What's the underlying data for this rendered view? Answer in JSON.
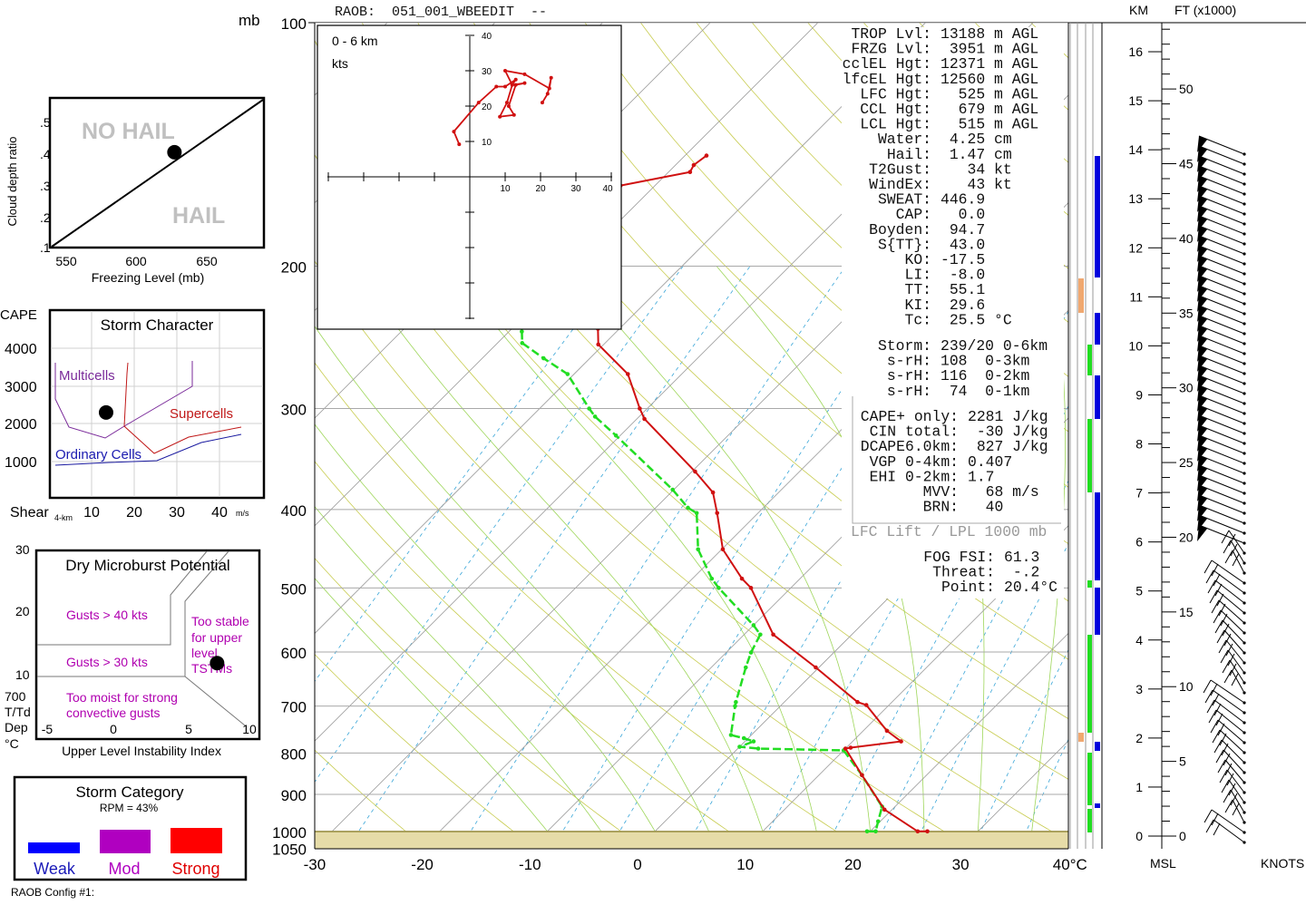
{
  "header": {
    "raob_title": "RAOB:  051_001_WBEEDIT  --",
    "mb_label": "mb",
    "km_label": "KM",
    "ft_label": "FT (x1000)",
    "msl_label": "MSL",
    "knots_label": "KNOTS",
    "config_label": "RAOB Config #1:"
  },
  "hail_chart": {
    "ylabel": "Cloud depth ratio",
    "xlabel": "Freezing Level (mb)",
    "yticks": [
      ".5",
      ".4",
      ".3",
      ".2",
      ".1"
    ],
    "xticks": [
      "550",
      "600",
      "650"
    ],
    "no_hail_label": "NO HAIL",
    "hail_label": "HAIL",
    "point": {
      "freezing_level_mb": 627,
      "ratio": 0.406
    }
  },
  "storm_character": {
    "title": "Storm Character",
    "ylabel": "CAPE",
    "xlabel": "Shear",
    "xlabel_sub": "4-km",
    "xunit": "m/s",
    "yticks": [
      "4000",
      "3000",
      "2000",
      "1000"
    ],
    "xticks": [
      "10",
      "20",
      "30",
      "40"
    ],
    "regions": {
      "multicells": "Multicells",
      "supercells": "Supercells",
      "ordinary": "Ordinary Cells"
    },
    "point": {
      "shear": 13.4,
      "cape": 2281
    }
  },
  "microburst": {
    "title": "Dry Microburst Potential",
    "xlabel": "Upper Level Instability Index",
    "ylabel_lines": [
      "700",
      "T/Td",
      "Dep",
      "°C"
    ],
    "yticks": [
      "30",
      "20",
      "10"
    ],
    "xticks": [
      "-5",
      "0",
      "5",
      "10"
    ],
    "gusts40": "Gusts > 40 kts",
    "gusts30": "Gusts > 30 kts",
    "too_stable": [
      "Too stable",
      "for upper",
      "level",
      "TSTMs"
    ],
    "too_moist": [
      "Too moist for strong",
      "convective gusts"
    ],
    "point": {
      "index": 7.6,
      "dep": 12.4
    }
  },
  "storm_category": {
    "title": "Storm Category",
    "rpm": "RPM = 43%",
    "weak": "Weak",
    "mod": "Mod",
    "strong": "Strong",
    "colors": {
      "weak": "#0000ff",
      "mod": "#b000c0",
      "strong": "#ff0000"
    }
  },
  "indices": {
    "main": [
      [
        "TROP Lvl:",
        "13188 m AGL"
      ],
      [
        "FRZG Lvl:",
        " 3951 m AGL"
      ],
      [
        "cclEL Hgt:",
        "12371 m AGL"
      ],
      [
        "lfcEL Hgt:",
        "12560 m AGL"
      ],
      [
        "LFC Hgt:",
        "  525 m AGL"
      ],
      [
        "CCL Hgt:",
        "  679 m AGL"
      ],
      [
        "LCL Hgt:",
        "  515 m AGL"
      ],
      [
        "Water:",
        " 4.25 cm"
      ],
      [
        "Hail:",
        " 1.47 cm"
      ],
      [
        "T2Gust:",
        "   34 kt"
      ],
      [
        "WindEx:",
        "   43 kt"
      ],
      [
        "SWEAT:",
        "446.9"
      ],
      [
        "CAP:",
        "  0.0"
      ],
      [
        "Boyden:",
        " 94.7"
      ],
      [
        "S{TT}:",
        " 43.0"
      ],
      [
        "KO:",
        "-17.5"
      ],
      [
        "LI:",
        " -8.0"
      ],
      [
        "TT:",
        " 55.1"
      ],
      [
        "KI:",
        " 29.6"
      ],
      [
        "Tc:",
        " 25.5 °C"
      ]
    ],
    "storm": [
      [
        "Storm:",
        "239/20 0-6km"
      ],
      [
        "s-rH:",
        "108  0-3km"
      ],
      [
        "s-rH:",
        "116  0-2km"
      ],
      [
        "s-rH:",
        " 74  0-1km"
      ]
    ],
    "cape": [
      [
        "CAPE+ only:",
        "2281 J/kg"
      ],
      [
        "CIN total:",
        " -30 J/kg"
      ],
      [
        "DCAPE6.0km:",
        " 827 J/kg"
      ],
      [
        "VGP 0-4km:",
        "0.407"
      ],
      [
        "EHI 0-2km:",
        "1.7"
      ],
      [
        "MVV:",
        "  68 m/s"
      ],
      [
        "BRN:",
        "  40"
      ]
    ],
    "lift_note": "LFC Lift / LPL 1000 mb",
    "fog": [
      [
        "FOG FSI:",
        "61.3"
      ],
      [
        "Threat:",
        " -.2"
      ],
      [
        "Point:",
        "20.4°C"
      ]
    ]
  },
  "chart_data": {
    "type": "skew-t",
    "pressure_ticks": [
      100,
      200,
      300,
      400,
      500,
      600,
      700,
      800,
      900,
      1000,
      1050
    ],
    "temp_ticks": [
      "-30",
      "-20",
      "-10",
      "0",
      "10",
      "20",
      "30",
      "40°C"
    ],
    "temperature_profile": [
      [
        1000,
        25.3
      ],
      [
        1000,
        24.4
      ],
      [
        940,
        19.3
      ],
      [
        852,
        14.0
      ],
      [
        790,
        10.0
      ],
      [
        788,
        10.4
      ],
      [
        774,
        14.5
      ],
      [
        751,
        12.2
      ],
      [
        698,
        7.9
      ],
      [
        692,
        6.8
      ],
      [
        627,
        -0.3
      ],
      [
        571,
        -7.3
      ],
      [
        500,
        -13.7
      ],
      [
        487,
        -15.4
      ],
      [
        448,
        -19.9
      ],
      [
        404,
        -23.8
      ],
      [
        381,
        -26.1
      ],
      [
        359,
        -29.7
      ],
      [
        309,
        -39.3
      ],
      [
        300,
        -40.7
      ],
      [
        272,
        -45.0
      ],
      [
        250,
        -50.5
      ],
      [
        239,
        -52.0
      ],
      [
        200,
        -58
      ],
      [
        170,
        -62
      ],
      [
        159,
        -63.2
      ],
      [
        153,
        -58
      ],
      [
        150,
        -58.3
      ],
      [
        146,
        -58
      ]
    ],
    "dewpoint_profile": [
      [
        1000,
        19.7
      ],
      [
        1000,
        20.5
      ],
      [
        972,
        19.8
      ],
      [
        932,
        18.8
      ],
      [
        852,
        14.0
      ],
      [
        794,
        10.0
      ],
      [
        790,
        1.9
      ],
      [
        786,
        0.0
      ],
      [
        774,
        0.8
      ],
      [
        767,
        -0.4
      ],
      [
        760,
        -1.9
      ],
      [
        700,
        -4.2
      ],
      [
        692,
        -4.5
      ],
      [
        627,
        -6.8
      ],
      [
        601,
        -7.7
      ],
      [
        571,
        -8.5
      ],
      [
        556,
        -10.0
      ],
      [
        500,
        -16.7
      ],
      [
        487,
        -18.2
      ],
      [
        448,
        -22.2
      ],
      [
        404,
        -25.7
      ],
      [
        398,
        -27.0
      ],
      [
        378,
        -30.1
      ],
      [
        324,
        -40.4
      ],
      [
        307,
        -44.1
      ],
      [
        300,
        -45.4
      ],
      [
        272,
        -50.6
      ],
      [
        260,
        -54.3
      ],
      [
        249,
        -57.7
      ],
      [
        241,
        -58.8
      ]
    ],
    "hodograph": {
      "title": "0 - 6 km",
      "unit": "kts",
      "xticks": [
        "10",
        "20",
        "30",
        "40"
      ],
      "yticks": [
        "40",
        "30",
        "20",
        "10"
      ],
      "points": [
        [
          -3,
          9.2
        ],
        [
          -4.5,
          12.8
        ],
        [
          2.5,
          21
        ],
        [
          7.5,
          25.5
        ],
        [
          10,
          25.5
        ],
        [
          13,
          27.5
        ],
        [
          12,
          26
        ],
        [
          10.5,
          21
        ],
        [
          8.5,
          17
        ],
        [
          12.5,
          17.5
        ],
        [
          11,
          20
        ],
        [
          13,
          26
        ],
        [
          15.5,
          26.5
        ],
        [
          12,
          26
        ],
        [
          10,
          30
        ],
        [
          15.5,
          29
        ],
        [
          22.5,
          25
        ],
        [
          23,
          28
        ],
        [
          22,
          23.5
        ],
        [
          20.5,
          21
        ]
      ]
    },
    "km_ticks": [
      "0",
      "1",
      "2",
      "3",
      "4",
      "5",
      "6",
      "7",
      "8",
      "9",
      "10",
      "11",
      "12",
      "13",
      "14",
      "15",
      "16"
    ],
    "ft_ticks": [
      "0",
      "5",
      "10",
      "15",
      "20",
      "25",
      "30",
      "35",
      "40",
      "45",
      "50"
    ],
    "colors": {
      "temperature": "#d01010",
      "dewpoint": "#22dd22",
      "isobar": "#a8a8a8",
      "isotherm": "#9a9a9a",
      "dry_adiabat": "#c8cc50",
      "moist_adiabat": "#9ed65a",
      "mixing_ratio": "#3aa6d8"
    }
  }
}
